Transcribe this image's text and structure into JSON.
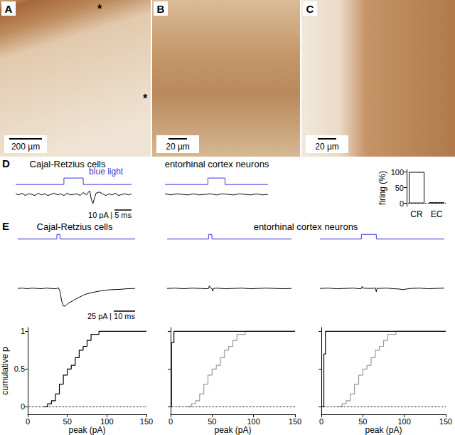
{
  "panel_labels": [
    "D",
    "E"
  ],
  "micrographs": [
    {
      "label": "A",
      "scale_bar": "200 µm",
      "marks": [
        "*",
        "*"
      ]
    },
    {
      "label": "B",
      "scale_bar": "20 µm"
    },
    {
      "label": "C",
      "scale_bar": "20 µm"
    }
  ],
  "chart_data": [
    {
      "type": "line",
      "title": "Cajal-Retzius cells",
      "annotation": "10 pA | 5 ms",
      "tick_labels": false,
      "xlim": [
        0,
        36
      ],
      "ylim": [
        -22,
        33
      ],
      "y2lim": [
        -3.5,
        1.45
      ],
      "series": [
        {
          "name": "blue light",
          "color": "#3b3bdb",
          "axis": "y2",
          "x": [
            0,
            15,
            15,
            21,
            21,
            36
          ],
          "values": [
            0,
            0,
            1,
            1,
            0,
            0
          ]
        },
        {
          "color": "#000000",
          "x": [
            0,
            1,
            2,
            3,
            4,
            5,
            6,
            7,
            8,
            9,
            10,
            11,
            12,
            13,
            14,
            15,
            16,
            17,
            18,
            19,
            20,
            21,
            22,
            22.5,
            23,
            23.5,
            24,
            24.5,
            25,
            26,
            27,
            28,
            29,
            30,
            31,
            32,
            33,
            34,
            35,
            36
          ],
          "values": [
            1,
            -1,
            2,
            -2,
            1,
            0,
            -2,
            2,
            -1,
            1,
            -2,
            0,
            2,
            -1,
            1,
            -2,
            2,
            -1,
            0,
            1,
            -2,
            3,
            -1,
            3,
            6,
            -8,
            -16,
            -6,
            2,
            4,
            1,
            -2,
            1,
            -1,
            2,
            -2,
            0,
            1,
            -1,
            1
          ]
        }
      ]
    },
    {
      "type": "line",
      "title": "entorhinal cortex neurons",
      "tick_labels": false,
      "xlim": [
        0,
        36
      ],
      "ylim": [
        -22,
        33
      ],
      "y2lim": [
        -3.5,
        1.45
      ],
      "series": [
        {
          "color": "#3b3bdb",
          "axis": "y2",
          "x": [
            0,
            15,
            15,
            21,
            21,
            36
          ],
          "values": [
            0,
            0,
            1,
            1,
            0,
            0
          ]
        },
        {
          "color": "#000000",
          "x": [
            0,
            2,
            4,
            6,
            8,
            10,
            12,
            14,
            16,
            18,
            20,
            22,
            24,
            26,
            28,
            30,
            32,
            34,
            36
          ],
          "values": [
            1,
            -1,
            1,
            0,
            -1,
            1,
            -1,
            0,
            1,
            -1,
            1,
            0,
            -1,
            1,
            0,
            -1,
            1,
            -1,
            0
          ]
        }
      ]
    },
    {
      "type": "bar",
      "categories": [
        "CR",
        "EC"
      ],
      "values": [
        100,
        3
      ],
      "color": "#ffffff",
      "y_label": "firing (%)",
      "ylim": [
        -10,
        108
      ],
      "yticks": [
        0,
        50,
        100
      ]
    },
    {
      "type": "line",
      "title": "Cajal-Retzius cells",
      "annotation": "25 pA | 10 ms",
      "tick_labels": false,
      "xlim": [
        0,
        75
      ],
      "ylim": [
        -65,
        180
      ],
      "y2lim": [
        -15,
        1.2
      ],
      "series": [
        {
          "color": "#3b3bdb",
          "axis": "y2",
          "x": [
            0,
            25,
            25,
            27,
            27,
            75
          ],
          "values": [
            0,
            0,
            1,
            1,
            0,
            0
          ]
        },
        {
          "color": "#000000",
          "x": [
            0,
            3,
            6,
            9,
            12,
            15,
            18,
            21,
            24,
            25,
            26,
            27,
            28,
            29,
            30,
            31,
            32,
            34,
            36,
            38,
            40,
            42,
            44,
            47,
            50,
            53,
            56,
            60,
            65,
            70,
            75
          ],
          "values": [
            0,
            1,
            -1,
            1,
            0,
            -1,
            1,
            0,
            -1,
            0,
            2,
            -10,
            -40,
            -57,
            -58,
            -55,
            -50,
            -44,
            -38,
            -32,
            -27,
            -22,
            -18,
            -14,
            -11,
            -8,
            -6,
            -4,
            -3,
            -1,
            0
          ]
        }
      ]
    },
    {
      "type": "line",
      "title": "entorhinal cortex neurons",
      "tick_labels": false,
      "xlim": [
        0,
        75
      ],
      "ylim": [
        -65,
        180
      ],
      "y2lim": [
        -15,
        1.2
      ],
      "series": [
        {
          "color": "#3b3bdb",
          "axis": "y2",
          "x": [
            0,
            25,
            25,
            27,
            27,
            75
          ],
          "values": [
            0,
            0,
            1,
            1,
            0,
            0
          ]
        },
        {
          "color": "#000000",
          "x": [
            0,
            5,
            10,
            15,
            20,
            24,
            25,
            25.5,
            26,
            27,
            27.5,
            28,
            30,
            35,
            40,
            45,
            50,
            55,
            60,
            65,
            70,
            75
          ],
          "values": [
            0,
            1,
            -1,
            1,
            0,
            -1,
            0,
            9,
            2,
            0,
            -9,
            0,
            1,
            -1,
            0,
            1,
            -1,
            0,
            1,
            0,
            -1,
            0
          ]
        }
      ]
    },
    {
      "type": "line",
      "tick_labels": false,
      "xlim": [
        0,
        75
      ],
      "ylim": [
        -65,
        180
      ],
      "y2lim": [
        -15,
        1.2
      ],
      "series": [
        {
          "color": "#3b3bdb",
          "axis": "y2",
          "x": [
            0,
            25,
            25,
            34,
            34,
            75
          ],
          "values": [
            0,
            0,
            1,
            1,
            0,
            0
          ]
        },
        {
          "color": "#000000",
          "x": [
            0,
            5,
            10,
            15,
            20,
            24,
            25,
            25.5,
            26,
            30,
            33.5,
            34,
            34.5,
            35,
            40,
            45,
            48,
            50,
            52,
            55,
            60,
            65,
            70,
            75
          ],
          "values": [
            0,
            1,
            -1,
            0,
            1,
            -1,
            0,
            7,
            1,
            0,
            1,
            -11,
            2,
            0,
            1,
            -1,
            -2,
            -4,
            -2,
            0,
            1,
            -1,
            0,
            1
          ]
        }
      ]
    },
    {
      "type": "step",
      "x_label": "peak (pA)",
      "y_label": "cumulative p",
      "xlim": [
        0,
        150
      ],
      "xticks": [
        0,
        50,
        100,
        150
      ],
      "ylim": [
        -0.1,
        1.05
      ],
      "yticks": [
        0,
        0.5,
        1
      ],
      "series": [
        {
          "color": "#000000",
          "x": [
            20,
            25,
            30,
            35,
            40,
            45,
            50,
            55,
            60,
            65,
            70,
            75,
            80,
            90,
            150
          ],
          "values": [
            0,
            0.04,
            0.08,
            0.17,
            0.3,
            0.42,
            0.5,
            0.55,
            0.65,
            0.75,
            0.8,
            0.88,
            0.96,
            1,
            1
          ]
        }
      ]
    },
    {
      "type": "step",
      "x_label": "peak (pA)",
      "tick_labels": "x",
      "xlim": [
        0,
        150
      ],
      "xticks": [
        0,
        50,
        100,
        150
      ],
      "ylim": [
        -0.1,
        1.05
      ],
      "yticks": [
        0,
        0.5,
        1
      ],
      "series": [
        {
          "color": "#999999",
          "x": [
            20,
            25,
            30,
            35,
            40,
            45,
            50,
            55,
            60,
            65,
            70,
            75,
            80,
            90,
            150
          ],
          "values": [
            0,
            0.04,
            0.08,
            0.17,
            0.3,
            0.42,
            0.5,
            0.55,
            0.65,
            0.75,
            0.8,
            0.88,
            0.96,
            1,
            1
          ]
        },
        {
          "color": "#000000",
          "x": [
            0,
            1,
            4,
            150
          ],
          "values": [
            0,
            0.85,
            1,
            1
          ]
        }
      ]
    },
    {
      "type": "step",
      "x_label": "peak (pA)",
      "tick_labels": "x",
      "xlim": [
        0,
        150
      ],
      "xticks": [
        0,
        50,
        100,
        150
      ],
      "ylim": [
        -0.1,
        1.05
      ],
      "yticks": [
        0,
        0.5,
        1
      ],
      "series": [
        {
          "color": "#999999",
          "x": [
            20,
            25,
            30,
            35,
            40,
            45,
            50,
            55,
            60,
            65,
            70,
            75,
            80,
            90,
            150
          ],
          "values": [
            0,
            0.04,
            0.08,
            0.17,
            0.3,
            0.42,
            0.5,
            0.55,
            0.65,
            0.75,
            0.8,
            0.88,
            0.96,
            1,
            1
          ]
        },
        {
          "color": "#000000",
          "x": [
            0,
            3,
            5,
            150
          ],
          "values": [
            0,
            0.7,
            1,
            1
          ]
        }
      ]
    }
  ]
}
